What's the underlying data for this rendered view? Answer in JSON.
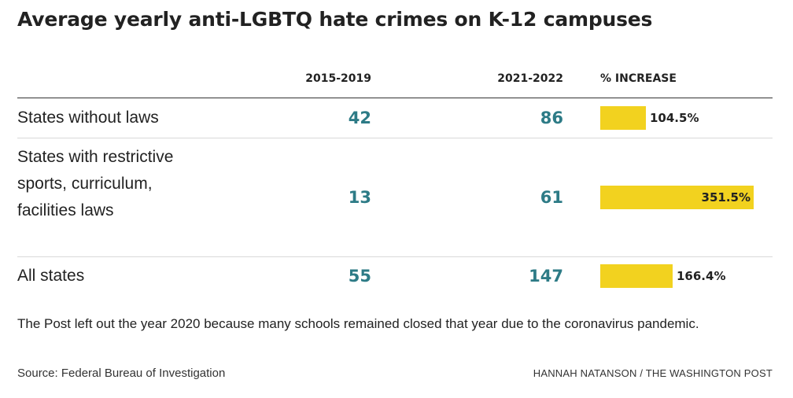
{
  "title": "Average yearly anti-LGBTQ hate crimes on K-12 campuses",
  "chart_data": {
    "type": "table",
    "columns": [
      "2015-2019",
      "2021-2022",
      "% INCREASE"
    ],
    "rows": [
      {
        "label": "States without laws",
        "v2015_2019": 42,
        "v2021_2022": 86,
        "pct_increase": 104.5,
        "pct_label": "104.5%"
      },
      {
        "label": "States with restrictive sports, curriculum, facilities laws",
        "v2015_2019": 13,
        "v2021_2022": 61,
        "pct_increase": 351.5,
        "pct_label": "351.5%"
      },
      {
        "label": "All states",
        "v2015_2019": 55,
        "v2021_2022": 147,
        "pct_increase": 166.4,
        "pct_label": "166.4%"
      }
    ],
    "bar_color": "#f2d21f",
    "number_color": "#2d7b86"
  },
  "note": "The Post left out the year 2020 because many schools remained closed that year due to the coronavirus pandemic.",
  "source": "Source: Federal Bureau of Investigation",
  "credit": "HANNAH NATANSON / THE WASHINGTON POST"
}
